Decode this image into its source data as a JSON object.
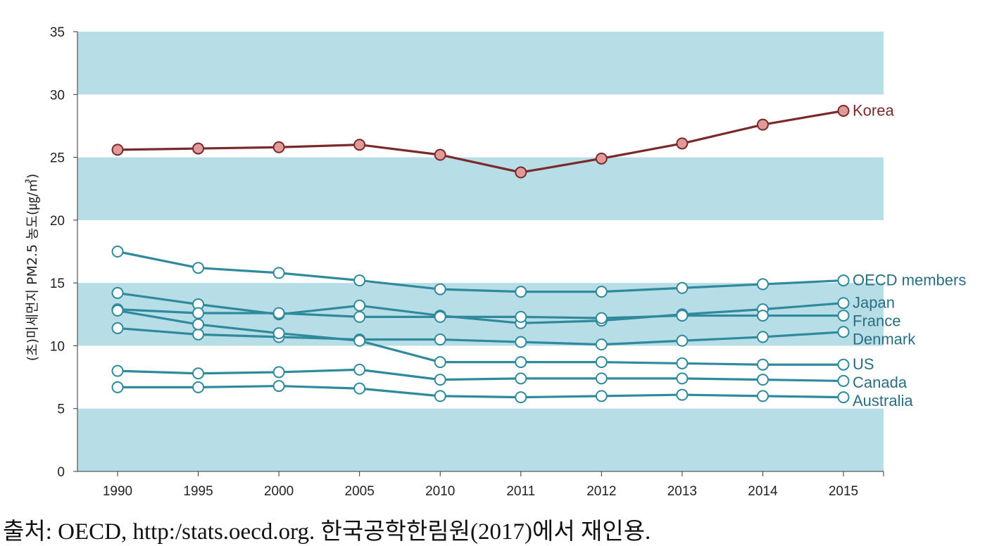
{
  "chart_data": {
    "type": "line",
    "ylabel": "(초)미세먼지 PM2.5 농도(㎍/㎥)",
    "ylim": [
      0,
      35
    ],
    "yticks": [
      0,
      5,
      10,
      15,
      20,
      25,
      30,
      35
    ],
    "categories": [
      "1990",
      "1995",
      "2000",
      "2005",
      "2010",
      "2011",
      "2012",
      "2013",
      "2014",
      "2015"
    ],
    "grid": "alternating horizontal bands",
    "band_color": "#b7dde6",
    "series": [
      {
        "name": "Korea",
        "color": "#7a2a2a",
        "marker_fill": "#e09a9a",
        "label_color": "#7a2a2a",
        "values": [
          25.6,
          25.7,
          25.8,
          26.0,
          25.2,
          23.8,
          24.9,
          26.1,
          27.6,
          28.7
        ]
      },
      {
        "name": "OECD members",
        "color": "#2e8a9c",
        "marker_fill": "#ffffff",
        "label_color": "#2a6e80",
        "values": [
          17.5,
          16.2,
          15.8,
          15.2,
          14.5,
          14.3,
          14.3,
          14.6,
          14.9,
          15.2
        ]
      },
      {
        "name": "Japan",
        "color": "#2e8a9c",
        "marker_fill": "#ffffff",
        "label_color": "#2a6e80",
        "values": [
          14.2,
          13.3,
          12.5,
          13.2,
          12.4,
          11.8,
          12.0,
          12.5,
          12.9,
          13.4
        ]
      },
      {
        "name": "France",
        "color": "#2e8a9c",
        "marker_fill": "#ffffff",
        "label_color": "#2a6e80",
        "values": [
          12.9,
          12.6,
          12.6,
          12.3,
          12.3,
          12.3,
          12.2,
          12.4,
          12.4,
          12.4
        ]
      },
      {
        "name": "Denmark",
        "color": "#2e8a9c",
        "marker_fill": "#ffffff",
        "label_color": "#2a6e80",
        "values": [
          11.4,
          10.9,
          10.7,
          10.5,
          10.5,
          10.3,
          10.1,
          10.4,
          10.7,
          11.1
        ]
      },
      {
        "name": "US",
        "color": "#2e8a9c",
        "marker_fill": "#ffffff",
        "label_color": "#2a6e80",
        "values": [
          12.8,
          11.7,
          11.0,
          10.4,
          8.7,
          8.7,
          8.7,
          8.6,
          8.5,
          8.5
        ]
      },
      {
        "name": "Canada",
        "color": "#2e8a9c",
        "marker_fill": "#ffffff",
        "label_color": "#2a6e80",
        "values": [
          8.0,
          7.8,
          7.9,
          8.1,
          7.3,
          7.4,
          7.4,
          7.4,
          7.3,
          7.2
        ]
      },
      {
        "name": "Australia",
        "color": "#2e8a9c",
        "marker_fill": "#ffffff",
        "label_color": "#2a6e80",
        "values": [
          6.7,
          6.7,
          6.8,
          6.6,
          6.0,
          5.9,
          6.0,
          6.1,
          6.0,
          5.9
        ]
      }
    ]
  },
  "source_text": "출처: OECD, http:/stats.oecd.org. 한국공학한림원(2017)에서 재인용."
}
